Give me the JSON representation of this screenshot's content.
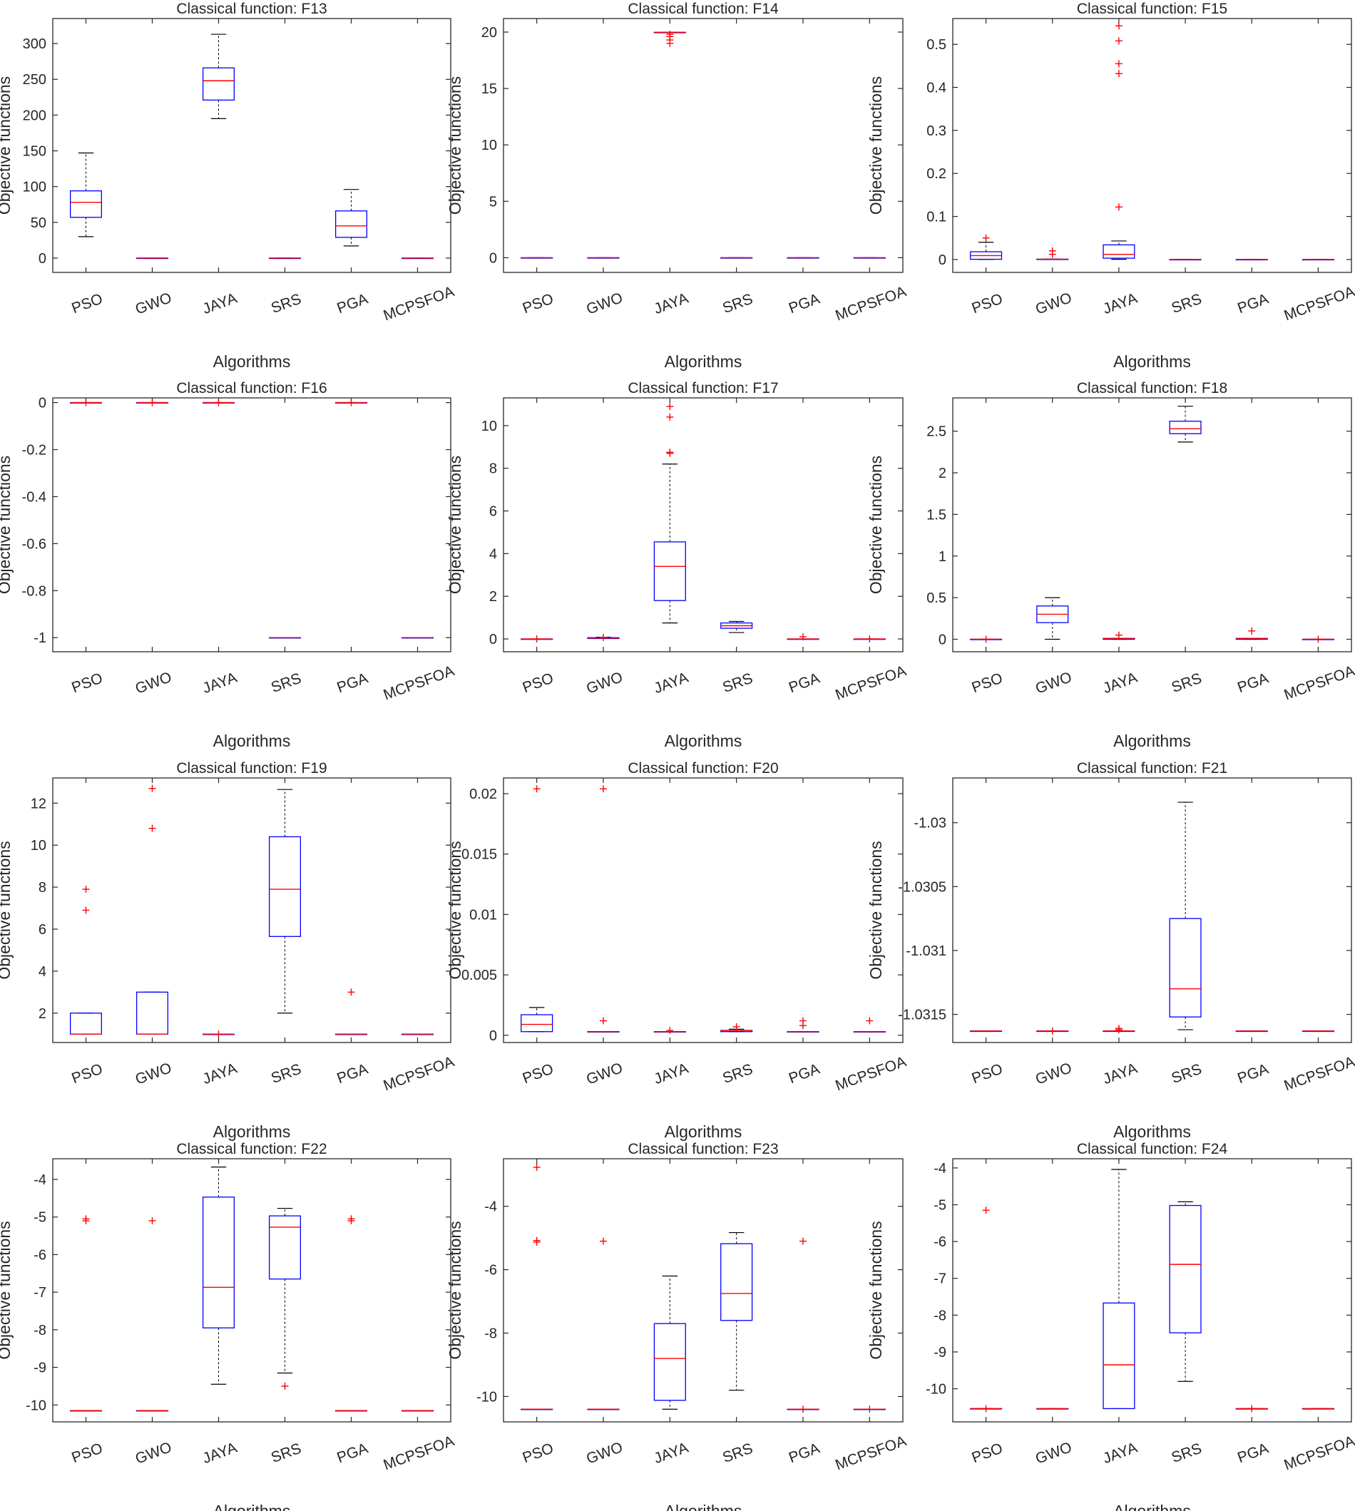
{
  "figure": {
    "colors": {
      "box": "#0000ff",
      "median": "#ff0000",
      "whisker": "#000000",
      "outlier": "#ff0000",
      "axis": "#262626"
    }
  },
  "chart_data": [
    {
      "type": "box",
      "title": "Classical function: F13",
      "xlabel": "Algorithms",
      "ylabel": "Objective functions",
      "categories": [
        "PSO",
        "GWO",
        "JAYA",
        "SRS",
        "PGA",
        "MCPSFOA"
      ],
      "ylim": [
        -20,
        335
      ],
      "ticks": [
        0,
        50,
        100,
        150,
        200,
        250,
        300
      ],
      "tick_labels": [
        "0",
        "50",
        "100",
        "150",
        "200",
        "250",
        "300"
      ],
      "boxes": [
        {
          "q1": 57,
          "median": 78,
          "q3": 94,
          "wlo": 30,
          "whi": 147,
          "outliers": []
        },
        {
          "q1": 0,
          "median": 0,
          "q3": 0,
          "wlo": 0,
          "whi": 0,
          "outliers": []
        },
        {
          "q1": 221,
          "median": 248,
          "q3": 266,
          "wlo": 195,
          "whi": 313,
          "outliers": []
        },
        {
          "q1": 0,
          "median": 0,
          "q3": 0,
          "wlo": 0,
          "whi": 0,
          "outliers": []
        },
        {
          "q1": 29,
          "median": 45,
          "q3": 66,
          "wlo": 17,
          "whi": 96,
          "outliers": []
        },
        {
          "q1": 0,
          "median": 0,
          "q3": 0,
          "wlo": 0,
          "whi": 0,
          "outliers": []
        }
      ]
    },
    {
      "type": "box",
      "title": "Classical function: F14",
      "xlabel": "Algorithms",
      "ylabel": "Objective functions",
      "categories": [
        "PSO",
        "GWO",
        "JAYA",
        "SRS",
        "PGA",
        "MCPSFOA"
      ],
      "ylim": [
        -1.3,
        21.2
      ],
      "ticks": [
        0,
        5,
        10,
        15,
        20
      ],
      "tick_labels": [
        "0",
        "5",
        "10",
        "15",
        "20"
      ],
      "boxes": [
        {
          "q1": 0,
          "median": 0,
          "q3": 0,
          "wlo": 0,
          "whi": 0,
          "outliers": []
        },
        {
          "q1": 0,
          "median": 0,
          "q3": 0,
          "wlo": 0,
          "whi": 0,
          "outliers": []
        },
        {
          "q1": 19.98,
          "median": 19.98,
          "q3": 19.98,
          "wlo": 19.98,
          "whi": 19.98,
          "outliers": [
            19.8,
            19.6,
            19.3,
            19.0
          ]
        },
        {
          "q1": 0,
          "median": 0,
          "q3": 0,
          "wlo": 0,
          "whi": 0,
          "outliers": []
        },
        {
          "q1": 0,
          "median": 0,
          "q3": 0,
          "wlo": 0,
          "whi": 0,
          "outliers": []
        },
        {
          "q1": 0,
          "median": 0,
          "q3": 0,
          "wlo": 0,
          "whi": 0,
          "outliers": []
        }
      ]
    },
    {
      "type": "box",
      "title": "Classical function: F15",
      "xlabel": "Algorithms",
      "ylabel": "Objective functions",
      "categories": [
        "PSO",
        "GWO",
        "JAYA",
        "SRS",
        "PGA",
        "MCPSFOA"
      ],
      "ylim": [
        -0.03,
        0.56
      ],
      "ticks": [
        0,
        0.1,
        0.2,
        0.3,
        0.4,
        0.5
      ],
      "tick_labels": [
        "0",
        "0.1",
        "0.2",
        "0.3",
        "0.4",
        "0.5"
      ],
      "boxes": [
        {
          "q1": 0.0005,
          "median": 0.009,
          "q3": 0.018,
          "wlo": 0.0003,
          "whi": 0.04,
          "outliers": [
            0.05
          ]
        },
        {
          "q1": 0.0003,
          "median": 0.0005,
          "q3": 0.0008,
          "wlo": 0.0003,
          "whi": 0.001,
          "outliers": [
            0.012,
            0.02
          ]
        },
        {
          "q1": 0.003,
          "median": 0.012,
          "q3": 0.034,
          "wlo": 0.0005,
          "whi": 0.043,
          "outliers": [
            0.122,
            0.432,
            0.455,
            0.508,
            0.543
          ]
        },
        {
          "q1": 0,
          "median": 0,
          "q3": 0,
          "wlo": 0,
          "whi": 0,
          "outliers": []
        },
        {
          "q1": 0,
          "median": 0,
          "q3": 0,
          "wlo": 0,
          "whi": 0,
          "outliers": []
        },
        {
          "q1": 0,
          "median": 0,
          "q3": 0,
          "wlo": 0,
          "whi": 0,
          "outliers": []
        }
      ]
    },
    {
      "type": "box",
      "title": "Classical function: F16",
      "xlabel": "Algorithms",
      "ylabel": "Objective functions",
      "categories": [
        "PSO",
        "GWO",
        "JAYA",
        "SRS",
        "PGA",
        "MCPSFOA"
      ],
      "ylim": [
        -1.06,
        0.02
      ],
      "ticks": [
        0,
        -0.2,
        -0.4,
        -0.6,
        -0.8,
        -1
      ],
      "tick_labels": [
        "0",
        "-0.2",
        "-0.4",
        "-0.6",
        "-0.8",
        "-1"
      ],
      "boxes": [
        {
          "q1": 0,
          "median": 0,
          "q3": 0,
          "wlo": 0,
          "whi": 0,
          "outliers": [
            0
          ]
        },
        {
          "q1": 0,
          "median": 0,
          "q3": 0,
          "wlo": 0,
          "whi": 0,
          "outliers": [
            0
          ]
        },
        {
          "q1": 0,
          "median": 0,
          "q3": 0,
          "wlo": 0,
          "whi": 0,
          "outliers": [
            0
          ]
        },
        {
          "q1": -1,
          "median": -1,
          "q3": -1,
          "wlo": -1,
          "whi": -1,
          "outliers": []
        },
        {
          "q1": 0,
          "median": 0,
          "q3": 0,
          "wlo": 0,
          "whi": 0,
          "outliers": [
            0
          ]
        },
        {
          "q1": -1,
          "median": -1,
          "q3": -1,
          "wlo": -1,
          "whi": -1,
          "outliers": []
        }
      ]
    },
    {
      "type": "box",
      "title": "Classical function: F17",
      "xlabel": "Algorithms",
      "ylabel": "Objective functions",
      "categories": [
        "PSO",
        "GWO",
        "JAYA",
        "SRS",
        "PGA",
        "MCPSFOA"
      ],
      "ylim": [
        -0.6,
        11.3
      ],
      "ticks": [
        0,
        2,
        4,
        6,
        8,
        10
      ],
      "tick_labels": [
        "0",
        "2",
        "4",
        "6",
        "8",
        "10"
      ],
      "boxes": [
        {
          "q1": 0,
          "median": 0,
          "q3": 0,
          "wlo": 0,
          "whi": 0,
          "outliers": [
            0
          ]
        },
        {
          "q1": 0.02,
          "median": 0.04,
          "q3": 0.06,
          "wlo": 0.02,
          "whi": 0.08,
          "outliers": [
            0.07
          ]
        },
        {
          "q1": 1.8,
          "median": 3.4,
          "q3": 4.55,
          "wlo": 0.75,
          "whi": 8.2,
          "outliers": [
            8.7,
            8.75,
            10.4,
            10.9
          ]
        },
        {
          "q1": 0.5,
          "median": 0.62,
          "q3": 0.75,
          "wlo": 0.3,
          "whi": 0.82,
          "outliers": []
        },
        {
          "q1": 0,
          "median": 0,
          "q3": 0,
          "wlo": 0,
          "whi": 0,
          "outliers": [
            0.1
          ]
        },
        {
          "q1": 0,
          "median": 0,
          "q3": 0,
          "wlo": 0,
          "whi": 0,
          "outliers": [
            0
          ]
        }
      ]
    },
    {
      "type": "box",
      "title": "Classical function: F18",
      "xlabel": "Algorithms",
      "ylabel": "Objective functions",
      "categories": [
        "PSO",
        "GWO",
        "JAYA",
        "SRS",
        "PGA",
        "MCPSFOA"
      ],
      "ylim": [
        -0.15,
        2.9
      ],
      "ticks": [
        0,
        0.5,
        1,
        1.5,
        2,
        2.5
      ],
      "tick_labels": [
        "0",
        "0.5",
        "1",
        "1.5",
        "2",
        "2.5"
      ],
      "boxes": [
        {
          "q1": 0,
          "median": 0,
          "q3": 0,
          "wlo": 0,
          "whi": 0,
          "outliers": [
            0
          ]
        },
        {
          "q1": 0.2,
          "median": 0.3,
          "q3": 0.4,
          "wlo": 0,
          "whi": 0.5,
          "outliers": []
        },
        {
          "q1": 0,
          "median": 0.01,
          "q3": 0.01,
          "wlo": 0,
          "whi": 0.01,
          "outliers": [
            0.05
          ]
        },
        {
          "q1": 2.47,
          "median": 2.53,
          "q3": 2.62,
          "wlo": 2.37,
          "whi": 2.8,
          "outliers": []
        },
        {
          "q1": 0,
          "median": 0.01,
          "q3": 0.01,
          "wlo": 0,
          "whi": 0.01,
          "outliers": [
            0.1
          ]
        },
        {
          "q1": 0,
          "median": 0,
          "q3": 0,
          "wlo": 0,
          "whi": 0,
          "outliers": [
            0
          ]
        }
      ]
    },
    {
      "type": "box",
      "title": "Classical function: F19",
      "xlabel": "Algorithms",
      "ylabel": "Objective functions",
      "categories": [
        "PSO",
        "GWO",
        "JAYA",
        "SRS",
        "PGA",
        "MCPSFOA"
      ],
      "ylim": [
        0.6,
        13.2
      ],
      "ticks": [
        2,
        4,
        6,
        8,
        10,
        12
      ],
      "tick_labels": [
        "2",
        "4",
        "6",
        "8",
        "10",
        "12"
      ],
      "boxes": [
        {
          "q1": 1,
          "median": 1,
          "q3": 2,
          "wlo": 1,
          "whi": 2,
          "outliers": [
            6.9,
            7.9
          ]
        },
        {
          "q1": 1,
          "median": 1,
          "q3": 3,
          "wlo": 1,
          "whi": 3,
          "outliers": [
            10.8,
            12.7
          ]
        },
        {
          "q1": 1,
          "median": 1,
          "q3": 1,
          "wlo": 1,
          "whi": 1,
          "outliers": [
            1
          ]
        },
        {
          "q1": 5.65,
          "median": 7.9,
          "q3": 10.4,
          "wlo": 2,
          "whi": 12.65,
          "outliers": []
        },
        {
          "q1": 1,
          "median": 1,
          "q3": 1,
          "wlo": 1,
          "whi": 1,
          "outliers": [
            3
          ]
        },
        {
          "q1": 1,
          "median": 1,
          "q3": 1,
          "wlo": 1,
          "whi": 1,
          "outliers": []
        }
      ]
    },
    {
      "type": "box",
      "title": "Classical function: F20",
      "xlabel": "Algorithms",
      "ylabel": "Objective functions",
      "categories": [
        "PSO",
        "GWO",
        "JAYA",
        "SRS",
        "PGA",
        "MCPSFOA"
      ],
      "ylim": [
        -0.0006,
        0.0213
      ],
      "ticks": [
        0,
        0.005,
        0.01,
        0.015,
        0.02
      ],
      "tick_labels": [
        "0",
        "0.005",
        "0.01",
        "0.015",
        "0.02"
      ],
      "boxes": [
        {
          "q1": 0.0003,
          "median": 0.0009,
          "q3": 0.0017,
          "wlo": 0.0003,
          "whi": 0.0023,
          "outliers": [
            0.0204
          ]
        },
        {
          "q1": 0.0003,
          "median": 0.0003,
          "q3": 0.0003,
          "wlo": 0.0003,
          "whi": 0.0003,
          "outliers": [
            0.0012,
            0.0204
          ]
        },
        {
          "q1": 0.0003,
          "median": 0.0003,
          "q3": 0.0003,
          "wlo": 0.0003,
          "whi": 0.0003,
          "outliers": [
            0.0004
          ]
        },
        {
          "q1": 0.0003,
          "median": 0.0004,
          "q3": 0.0004,
          "wlo": 0.0003,
          "whi": 0.0005,
          "outliers": [
            0.0007
          ]
        },
        {
          "q1": 0.0003,
          "median": 0.0003,
          "q3": 0.0003,
          "wlo": 0.0003,
          "whi": 0.0003,
          "outliers": [
            0.0008,
            0.0012
          ]
        },
        {
          "q1": 0.0003,
          "median": 0.0003,
          "q3": 0.0003,
          "wlo": 0.0003,
          "whi": 0.0003,
          "outliers": [
            0.0012
          ]
        }
      ]
    },
    {
      "type": "box",
      "title": "Classical function: F21",
      "xlabel": "Algorithms",
      "ylabel": "Objective functions",
      "categories": [
        "PSO",
        "GWO",
        "JAYA",
        "SRS",
        "PGA",
        "MCPSFOA"
      ],
      "ylim": [
        -1.03172,
        -1.02965
      ],
      "ticks": [
        -1.03,
        -1.0305,
        -1.031,
        -1.0315
      ],
      "tick_labels": [
        "-1.03",
        "-1.0305",
        "-1.031",
        "-1.0315"
      ],
      "boxes": [
        {
          "q1": -1.03163,
          "median": -1.03163,
          "q3": -1.03163,
          "wlo": -1.03163,
          "whi": -1.03163,
          "outliers": []
        },
        {
          "q1": -1.03163,
          "median": -1.03163,
          "q3": -1.03163,
          "wlo": -1.03163,
          "whi": -1.03163,
          "outliers": [
            -1.03163
          ]
        },
        {
          "q1": -1.03163,
          "median": -1.03163,
          "q3": -1.03163,
          "wlo": -1.03163,
          "whi": -1.03163,
          "outliers": [
            -1.03162,
            -1.03161
          ]
        },
        {
          "q1": -1.03152,
          "median": -1.0313,
          "q3": -1.03075,
          "wlo": -1.03162,
          "whi": -1.02984,
          "outliers": []
        },
        {
          "q1": -1.03163,
          "median": -1.03163,
          "q3": -1.03163,
          "wlo": -1.03163,
          "whi": -1.03163,
          "outliers": []
        },
        {
          "q1": -1.03163,
          "median": -1.03163,
          "q3": -1.03163,
          "wlo": -1.03163,
          "whi": -1.03163,
          "outliers": []
        }
      ]
    },
    {
      "type": "box",
      "title": "Classical function: F22",
      "xlabel": "Algorithms",
      "ylabel": "Objective functions",
      "categories": [
        "PSO",
        "GWO",
        "JAYA",
        "SRS",
        "PGA",
        "MCPSFOA"
      ],
      "ylim": [
        -10.45,
        -3.45
      ],
      "ticks": [
        -4,
        -5,
        -6,
        -7,
        -8,
        -9,
        -10
      ],
      "tick_labels": [
        "-4",
        "-5",
        "-6",
        "-7",
        "-8",
        "-9",
        "-10"
      ],
      "boxes": [
        {
          "q1": -10.15,
          "median": -10.15,
          "q3": -10.15,
          "wlo": -10.15,
          "whi": -10.15,
          "outliers": [
            -5.05,
            -5.1
          ]
        },
        {
          "q1": -10.15,
          "median": -10.15,
          "q3": -10.15,
          "wlo": -10.15,
          "whi": -10.15,
          "outliers": [
            -5.1
          ]
        },
        {
          "q1": -7.95,
          "median": -6.87,
          "q3": -4.47,
          "wlo": -9.45,
          "whi": -3.67,
          "outliers": []
        },
        {
          "q1": -6.65,
          "median": -5.27,
          "q3": -4.97,
          "wlo": -9.15,
          "whi": -4.77,
          "outliers": [
            -9.5
          ]
        },
        {
          "q1": -10.15,
          "median": -10.15,
          "q3": -10.15,
          "wlo": -10.15,
          "whi": -10.15,
          "outliers": [
            -5.05,
            -5.1
          ]
        },
        {
          "q1": -10.15,
          "median": -10.15,
          "q3": -10.15,
          "wlo": -10.15,
          "whi": -10.15,
          "outliers": []
        }
      ]
    },
    {
      "type": "box",
      "title": "Classical function: F23",
      "xlabel": "Algorithms",
      "ylabel": "Objective functions",
      "categories": [
        "PSO",
        "GWO",
        "JAYA",
        "SRS",
        "PGA",
        "MCPSFOA"
      ],
      "ylim": [
        -10.8,
        -2.5
      ],
      "ticks": [
        -4,
        -6,
        -8,
        -10
      ],
      "tick_labels": [
        "-4",
        "-6",
        "-8",
        "-10"
      ],
      "boxes": [
        {
          "q1": -10.4,
          "median": -10.4,
          "q3": -10.4,
          "wlo": -10.4,
          "whi": -10.4,
          "outliers": [
            -2.77,
            -5.08,
            -5.13
          ]
        },
        {
          "q1": -10.4,
          "median": -10.4,
          "q3": -10.4,
          "wlo": -10.4,
          "whi": -10.4,
          "outliers": [
            -5.1
          ]
        },
        {
          "q1": -10.12,
          "median": -8.8,
          "q3": -7.7,
          "wlo": -10.4,
          "whi": -6.2,
          "outliers": []
        },
        {
          "q1": -7.6,
          "median": -6.75,
          "q3": -5.18,
          "wlo": -9.8,
          "whi": -4.83,
          "outliers": []
        },
        {
          "q1": -10.4,
          "median": -10.4,
          "q3": -10.4,
          "wlo": -10.4,
          "whi": -10.4,
          "outliers": [
            -5.1,
            -10.4
          ]
        },
        {
          "q1": -10.4,
          "median": -10.4,
          "q3": -10.4,
          "wlo": -10.4,
          "whi": -10.4,
          "outliers": [
            -10.4
          ]
        }
      ]
    },
    {
      "type": "box",
      "title": "Classical function: F24",
      "xlabel": "Algorithms",
      "ylabel": "Objective functions",
      "categories": [
        "PSO",
        "GWO",
        "JAYA",
        "SRS",
        "PGA",
        "MCPSFOA"
      ],
      "ylim": [
        -10.9,
        -3.75
      ],
      "ticks": [
        -4,
        -5,
        -6,
        -7,
        -8,
        -9,
        -10
      ],
      "tick_labels": [
        "-4",
        "-5",
        "-6",
        "-7",
        "-8",
        "-9",
        "-10"
      ],
      "boxes": [
        {
          "q1": -10.54,
          "median": -10.54,
          "q3": -10.54,
          "wlo": -10.54,
          "whi": -10.54,
          "outliers": [
            -5.15,
            -10.54
          ]
        },
        {
          "q1": -10.54,
          "median": -10.54,
          "q3": -10.54,
          "wlo": -10.54,
          "whi": -10.54,
          "outliers": []
        },
        {
          "q1": -10.54,
          "median": -9.35,
          "q3": -7.67,
          "wlo": -10.54,
          "whi": -4.04,
          "outliers": []
        },
        {
          "q1": -8.48,
          "median": -6.62,
          "q3": -5.02,
          "wlo": -9.8,
          "whi": -4.92,
          "outliers": []
        },
        {
          "q1": -10.54,
          "median": -10.54,
          "q3": -10.54,
          "wlo": -10.54,
          "whi": -10.54,
          "outliers": [
            -10.54
          ]
        },
        {
          "q1": -10.54,
          "median": -10.54,
          "q3": -10.54,
          "wlo": -10.54,
          "whi": -10.54,
          "outliers": []
        }
      ]
    }
  ]
}
